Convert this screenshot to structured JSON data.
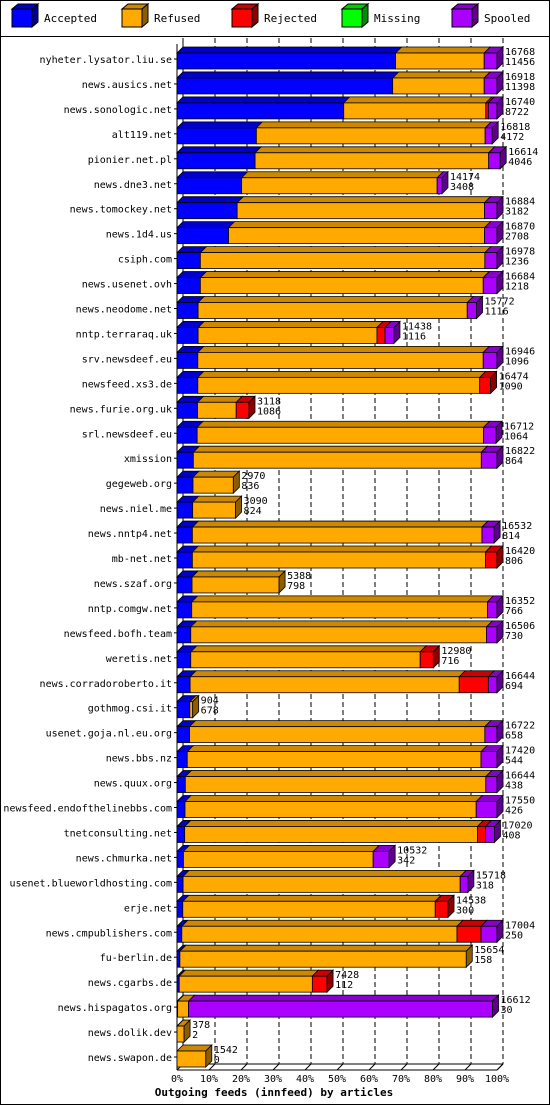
{
  "chart_data": {
    "type": "bar",
    "stacked": true,
    "orientation": "horizontal",
    "title": "",
    "xlabel": "Outgoing feeds (innfeed) by articles",
    "ylabel": "",
    "xlim": [
      0,
      100
    ],
    "x_ticks": [
      "0%",
      "10%",
      "20%",
      "30%",
      "40%",
      "50%",
      "60%",
      "70%",
      "80%",
      "90%",
      "100%"
    ],
    "grid": true,
    "legend_position": "top",
    "series": [
      {
        "name": "Accepted",
        "color": "#0000ff"
      },
      {
        "name": "Refused",
        "color": "#ffaa00"
      },
      {
        "name": "Rejected",
        "color": "#ff0000"
      },
      {
        "name": "Missing",
        "color": "#00ff00"
      },
      {
        "name": "Spooled",
        "color": "#aa00ff"
      }
    ],
    "rows": [
      {
        "name": "nyheter.lysator.liu.se",
        "offered": "16768",
        "accepted": "11456",
        "pct": [
          68.3,
          27.7,
          0,
          0,
          4.0
        ]
      },
      {
        "name": "news.ausics.net",
        "offered": "16918",
        "accepted": "11398",
        "pct": [
          67.4,
          28.6,
          0,
          0,
          4.0
        ]
      },
      {
        "name": "news.sonologic.net",
        "offered": "16740",
        "accepted": "8722",
        "pct": [
          52.1,
          44.4,
          0.8,
          0,
          2.7
        ]
      },
      {
        "name": "alt119.net",
        "offered": "16818",
        "accepted": "4172",
        "pct": [
          24.8,
          71.5,
          0,
          0,
          2.2
        ]
      },
      {
        "name": "pionier.net.pl",
        "offered": "16614",
        "accepted": "4046",
        "pct": [
          24.4,
          73.0,
          0,
          0,
          3.6
        ]
      },
      {
        "name": "news.dne3.net",
        "offered": "14174",
        "accepted": "3408",
        "pct": [
          20.2,
          61.1,
          0,
          0,
          1.5
        ]
      },
      {
        "name": "news.tomockey.net",
        "offered": "16884",
        "accepted": "3182",
        "pct": [
          18.8,
          77.3,
          0,
          0,
          3.9
        ]
      },
      {
        "name": "news.1d4.us",
        "offered": "16870",
        "accepted": "2708",
        "pct": [
          16.1,
          80.0,
          0,
          0,
          3.9
        ]
      },
      {
        "name": "csiph.com",
        "offered": "16978",
        "accepted": "1236",
        "pct": [
          7.3,
          88.9,
          0,
          0,
          3.8
        ]
      },
      {
        "name": "news.usenet.ovh",
        "offered": "16684",
        "accepted": "1218",
        "pct": [
          7.3,
          88.4,
          0,
          0,
          4.3
        ]
      },
      {
        "name": "news.neodome.net",
        "offered": "15772",
        "accepted": "1116",
        "pct": [
          6.6,
          84.1,
          0,
          0,
          2.9
        ]
      },
      {
        "name": "nntp.terraraq.uk",
        "offered": "11438",
        "accepted": "1116",
        "pct": [
          6.6,
          55.9,
          2.5,
          0,
          2.8
        ]
      },
      {
        "name": "srv.newsdeef.eu",
        "offered": "16946",
        "accepted": "1096",
        "pct": [
          6.5,
          89.2,
          0,
          0,
          4.3
        ]
      },
      {
        "name": "newsfeed.xs3.de",
        "offered": "16474",
        "accepted": "1090",
        "pct": [
          6.5,
          88.1,
          3.4,
          0,
          0
        ]
      },
      {
        "name": "news.furie.org.uk",
        "offered": "3118",
        "accepted": "1086",
        "pct": [
          6.4,
          12.1,
          4.0,
          0,
          0
        ]
      },
      {
        "name": "srl.newsdeef.eu",
        "offered": "16712",
        "accepted": "1064",
        "pct": [
          6.3,
          89.5,
          0,
          0,
          3.9
        ]
      },
      {
        "name": "xmission",
        "offered": "16822",
        "accepted": "864",
        "pct": [
          5.1,
          90.0,
          0,
          0,
          4.9
        ]
      },
      {
        "name": "gegeweb.org",
        "offered": "2970",
        "accepted": "836",
        "pct": [
          5.0,
          12.6,
          0,
          0,
          0
        ]
      },
      {
        "name": "news.niel.me",
        "offered": "3090",
        "accepted": "824",
        "pct": [
          4.9,
          13.4,
          0,
          0,
          0
        ]
      },
      {
        "name": "news.nntp4.net",
        "offered": "16532",
        "accepted": "814",
        "pct": [
          4.8,
          90.5,
          0,
          0,
          3.8
        ]
      },
      {
        "name": "mb-net.net",
        "offered": "16420",
        "accepted": "806",
        "pct": [
          4.8,
          91.6,
          3.6,
          0,
          0
        ]
      },
      {
        "name": "news.szaf.org",
        "offered": "5388",
        "accepted": "798",
        "pct": [
          4.7,
          27.2,
          0,
          0,
          0
        ]
      },
      {
        "name": "nntp.comgw.net",
        "offered": "16352",
        "accepted": "766",
        "pct": [
          4.6,
          92.4,
          0,
          0,
          3.0
        ]
      },
      {
        "name": "newsfeed.bofh.team",
        "offered": "16506",
        "accepted": "730",
        "pct": [
          4.3,
          92.4,
          0,
          0,
          3.3
        ]
      },
      {
        "name": "weretis.net",
        "offered": "12980",
        "accepted": "716",
        "pct": [
          4.3,
          71.7,
          4.1,
          0,
          0
        ]
      },
      {
        "name": "news.corradoroberto.it",
        "offered": "16644",
        "accepted": "694",
        "pct": [
          4.1,
          84.1,
          9.1,
          0,
          2.7
        ]
      },
      {
        "name": "gothmog.csi.it",
        "offered": "904",
        "accepted": "678",
        "pct": [
          4.0,
          0.9,
          0,
          0,
          0
        ]
      },
      {
        "name": "usenet.goja.nl.eu.org",
        "offered": "16722",
        "accepted": "658",
        "pct": [
          3.9,
          92.3,
          0,
          0,
          3.8
        ]
      },
      {
        "name": "news.bbs.nz",
        "offered": "17420",
        "accepted": "544",
        "pct": [
          3.2,
          91.8,
          0,
          0,
          5.0
        ]
      },
      {
        "name": "news.quux.org",
        "offered": "16644",
        "accepted": "438",
        "pct": [
          2.6,
          93.9,
          0,
          0,
          3.5
        ]
      },
      {
        "name": "newsfeed.endofthelinebbs.com",
        "offered": "17550",
        "accepted": "426",
        "pct": [
          2.5,
          91.0,
          0,
          0,
          6.5
        ]
      },
      {
        "name": "tnetconsulting.net",
        "offered": "17020",
        "accepted": "408",
        "pct": [
          2.4,
          91.5,
          2.5,
          0,
          2.8
        ]
      },
      {
        "name": "news.chmurka.net",
        "offered": "10532",
        "accepted": "342",
        "pct": [
          2.0,
          59.3,
          0,
          0,
          5.0
        ]
      },
      {
        "name": "usenet.blueworldhosting.com",
        "offered": "15718",
        "accepted": "318",
        "pct": [
          1.9,
          86.6,
          0,
          0,
          2.4
        ]
      },
      {
        "name": "erje.net",
        "offered": "14538",
        "accepted": "300",
        "pct": [
          1.8,
          78.9,
          4.0,
          0,
          0
        ]
      },
      {
        "name": "news.cmpublishers.com",
        "offered": "17004",
        "accepted": "250",
        "pct": [
          1.5,
          86.0,
          7.5,
          0,
          5.0
        ]
      },
      {
        "name": "fu-berlin.de",
        "offered": "15654",
        "accepted": "158",
        "pct": [
          0.9,
          89.5,
          0,
          0,
          0
        ]
      },
      {
        "name": "news.cgarbs.de",
        "offered": "7428",
        "accepted": "112",
        "pct": [
          0.7,
          41.6,
          4.6,
          0,
          0
        ]
      },
      {
        "name": "news.hispagatos.org",
        "offered": "16612",
        "accepted": "30",
        "pct": [
          0.2,
          3.4,
          0,
          0,
          95.0
        ]
      },
      {
        "name": "news.dolik.dev",
        "offered": "378",
        "accepted": "2",
        "pct": [
          0.01,
          2.2,
          0,
          0,
          0
        ]
      },
      {
        "name": "news.swapon.de",
        "offered": "1542",
        "accepted": "0",
        "pct": [
          0,
          9.0,
          0,
          0,
          0
        ]
      }
    ]
  }
}
